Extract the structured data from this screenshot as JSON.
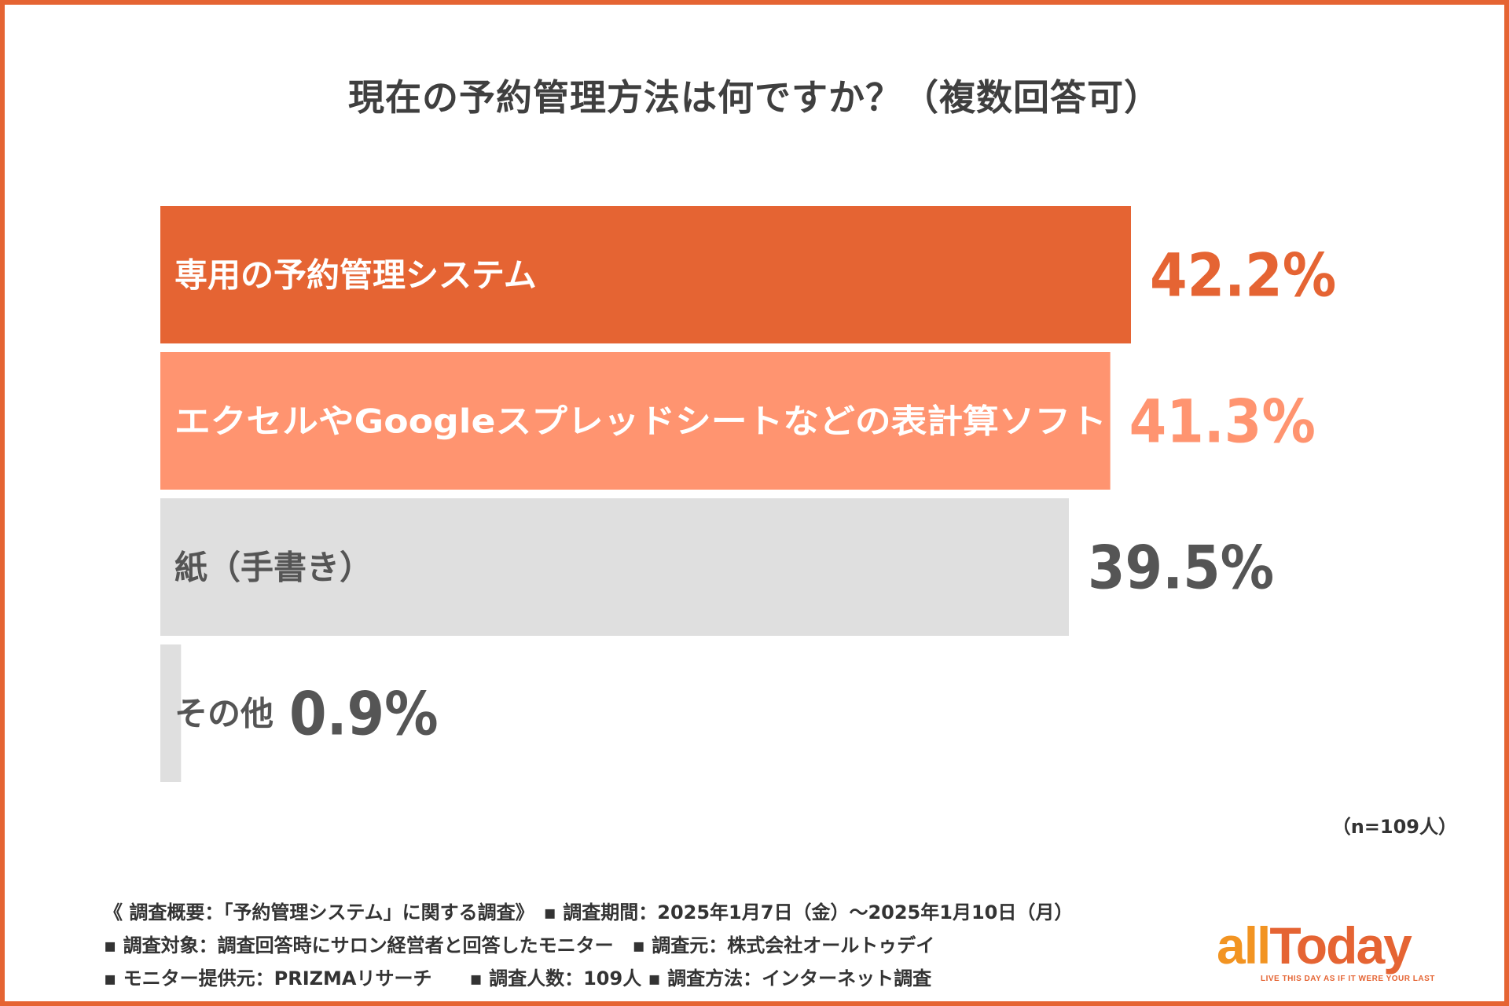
{
  "title": "現在の予約管理方法は何ですか？（複数回答可）",
  "chart_data": {
    "type": "bar",
    "orientation": "horizontal",
    "categories": [
      "専用の予約管理システム",
      "エクセルやGoogleスプレッドシートなどの表計算ソフト",
      "紙（手書き）",
      "その他"
    ],
    "values": [
      42.2,
      41.3,
      39.5,
      0.9
    ],
    "value_labels": [
      "42.2%",
      "41.3%",
      "39.5%",
      "0.9%"
    ],
    "unit": "%",
    "xlim": [
      0,
      42.2
    ],
    "grid": false,
    "legend": "none",
    "colors": {
      "bar_fills": [
        "#E56433",
        "#FF9470",
        "#DFDFDF",
        "#DFDFDF"
      ],
      "category_text": [
        "#ffffff",
        "#ffffff",
        "#555555",
        "#555555"
      ],
      "value_text": [
        "#E56433",
        "#FF9470",
        "#555555",
        "#555555"
      ]
    }
  },
  "sample_size": "（n=109人）",
  "footer": {
    "lines": [
      "《 調査概要：「予約管理システム」に関する調査》　▪ 調査期間：2025年1月7日（金）～2025年1月10日（月）",
      "▪ 調査対象：調査回答時にサロン経営者と回答したモニター　▪ 調査元：株式会社オールトゥデイ",
      "▪ モニター提供元：PRIZMAリサーチ　　▪ 調査人数：109人 ▪ 調査方法：インターネット調査"
    ]
  },
  "logo": {
    "part1": "all",
    "part2": "Today",
    "tagline": "LIVE THIS DAY AS IF IT WERE YOUR LAST",
    "color_primary": "#F29422",
    "color_secondary": "#E56433"
  }
}
